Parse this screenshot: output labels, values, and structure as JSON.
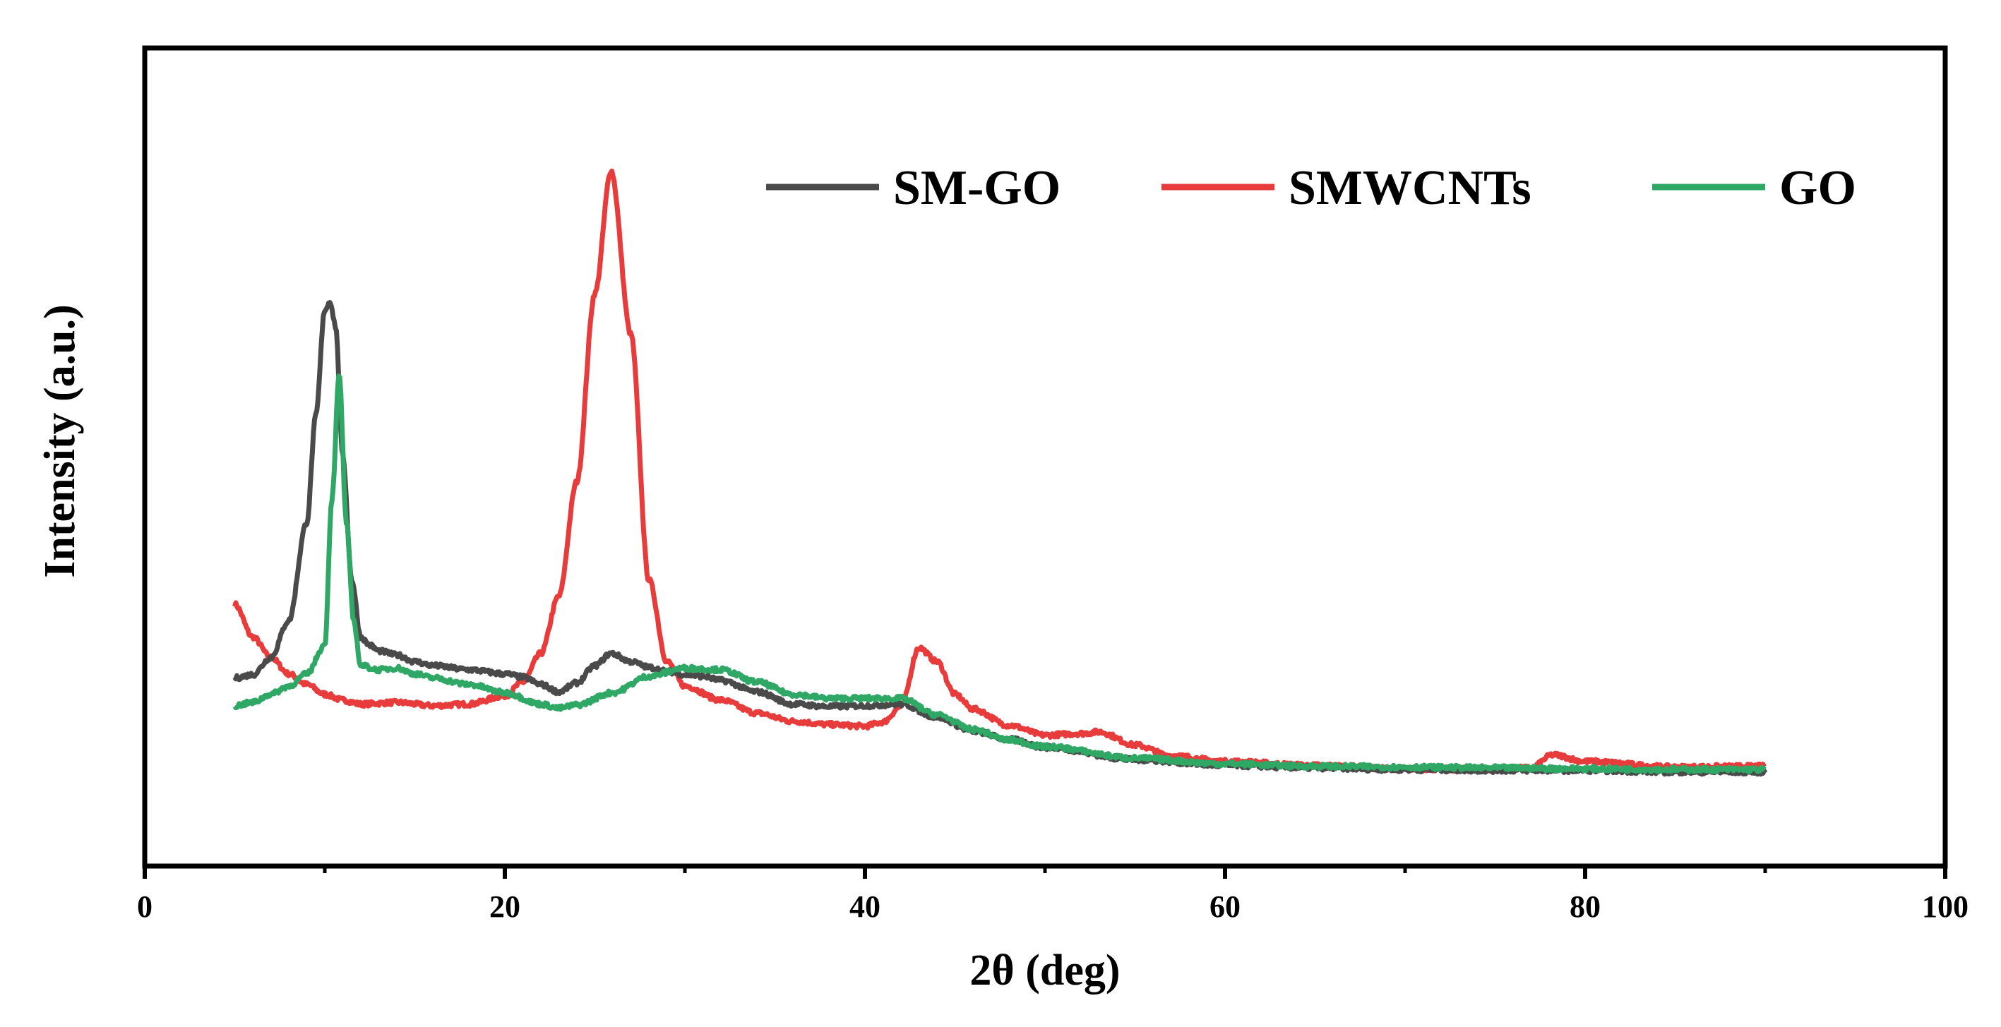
{
  "chart_data": {
    "type": "line",
    "title": "",
    "xlabel": "2θ (deg)",
    "ylabel": "Intensity (a.u.)",
    "xlim": [
      0,
      100
    ],
    "ylim": [
      0,
      100
    ],
    "x_ticks": [
      0,
      20,
      40,
      60,
      80,
      100
    ],
    "x_tick_labels": [
      "0",
      "20",
      "40",
      "60",
      "80",
      "100"
    ],
    "y_ticks_shown": false,
    "grid": false,
    "legend_position": "top-right",
    "legend_orientation": "horizontal",
    "series": [
      {
        "name": "SM-GO",
        "color": "#4a4a4a",
        "x": [
          5,
          6,
          7,
          8,
          9,
          9.5,
          10,
          10.3,
          10.6,
          11,
          11.5,
          12,
          12.5,
          13,
          14,
          15,
          16,
          18,
          20,
          21,
          22,
          23,
          24,
          25,
          25.9,
          27,
          28,
          29,
          30,
          31,
          32,
          34,
          36,
          38,
          40,
          42,
          44,
          46,
          48,
          50,
          55,
          60,
          65,
          70,
          75,
          80,
          85,
          90
        ],
        "y": [
          23,
          23.4,
          25.5,
          30,
          42,
          55,
          68,
          69,
          66,
          50,
          35,
          28,
          27,
          26.3,
          25.8,
          25,
          24.5,
          24,
          23.5,
          23.1,
          22.2,
          21.3,
          22.4,
          24.5,
          26,
          25,
          24.3,
          23.8,
          23.4,
          23.2,
          22.7,
          21.3,
          19.8,
          19.5,
          19.6,
          19.8,
          18.2,
          16.5,
          15.5,
          14.5,
          13,
          12.3,
          12,
          11.8,
          11.7,
          11.7,
          11.5,
          11.5
        ]
      },
      {
        "name": "SMWCNTs",
        "color": "#e83c3c",
        "x": [
          5,
          6,
          7,
          8,
          9,
          10,
          11,
          12,
          14,
          16,
          18,
          20,
          21,
          22,
          23,
          24,
          25,
          25.9,
          27,
          28,
          29,
          30,
          32,
          34,
          36,
          38,
          40,
          41,
          42,
          43,
          44,
          45,
          46,
          48,
          50,
          52,
          53,
          55,
          57,
          60,
          65,
          70,
          75,
          77,
          78.2,
          80,
          85,
          90
        ],
        "y": [
          32,
          28,
          25.5,
          23.5,
          22.2,
          21,
          20.3,
          19.8,
          20,
          19.6,
          19.8,
          20.8,
          22.5,
          26,
          33,
          47,
          70,
          85,
          65,
          35,
          25,
          22,
          20.3,
          18.7,
          17.7,
          17.3,
          17.1,
          17.6,
          19.5,
          26.7,
          25,
          21,
          19.2,
          17.2,
          16,
          16.2,
          16.4,
          14.8,
          13.5,
          12.8,
          12.3,
          11.9,
          11.8,
          12,
          13.6,
          12.8,
          12.1,
          12.2
        ]
      },
      {
        "name": "GO",
        "color": "#2fa866",
        "x": [
          5,
          6,
          7,
          8,
          9,
          10,
          10.4,
          10.8,
          11.2,
          11.6,
          12,
          13,
          14,
          15,
          16,
          18,
          20,
          22,
          23,
          24,
          26,
          28,
          30,
          32,
          34,
          36,
          38,
          40,
          42,
          44,
          46,
          48,
          50,
          55,
          60,
          65,
          70,
          75,
          80,
          85,
          90
        ],
        "y": [
          19.6,
          20,
          21,
          22,
          23.5,
          27,
          45,
          60,
          42,
          30,
          24.5,
          24,
          24.2,
          23.5,
          23,
          22.2,
          21.2,
          19.8,
          19.3,
          19.7,
          21.2,
          23.2,
          24.2,
          24,
          22.5,
          21,
          20.5,
          20.5,
          20.5,
          18.5,
          16.7,
          15.4,
          14.6,
          13.2,
          12.5,
          12.2,
          12.1,
          12,
          11.9,
          11.8,
          11.8
        ]
      }
    ]
  }
}
